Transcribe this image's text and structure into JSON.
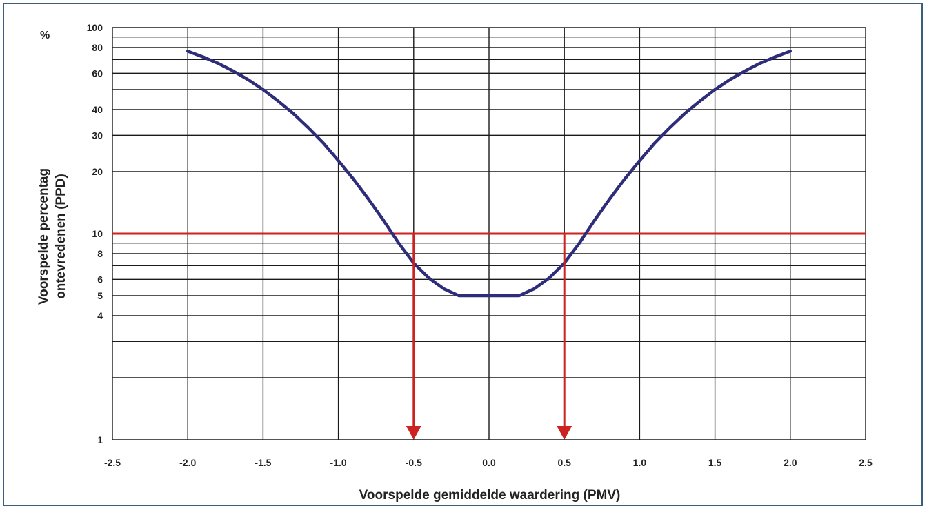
{
  "chart_data": {
    "type": "line",
    "title": "",
    "xlabel": "Voorspelde gemiddelde waardering (PMV)",
    "ylabel_line1": "Voorspelde percentag",
    "ylabel_line2": "ontevredenen (PPD)",
    "yunit": "%",
    "xlim": [
      -2.5,
      2.5
    ],
    "ylim": [
      1,
      100
    ],
    "yscale": "log",
    "grid": true,
    "x_ticks": [
      "-2.5",
      "-2.0",
      "-1.5",
      "-1.0",
      "-0.5",
      "0.0",
      "0.5",
      "1.0",
      "1.5",
      "2.0",
      "2.5"
    ],
    "y_ticks": [
      {
        "value": 1,
        "label": "1"
      },
      {
        "value": 4,
        "label": "4"
      },
      {
        "value": 5,
        "label": "5"
      },
      {
        "value": 6,
        "label": "6"
      },
      {
        "value": 8,
        "label": "8"
      },
      {
        "value": 10,
        "label": "10"
      },
      {
        "value": 20,
        "label": "20"
      },
      {
        "value": 30,
        "label": "30"
      },
      {
        "value": 40,
        "label": "40"
      },
      {
        "value": 60,
        "label": "60"
      },
      {
        "value": 80,
        "label": "80"
      },
      {
        "value": 100,
        "label": "100"
      }
    ],
    "y_grid_values": [
      1,
      2,
      3,
      4,
      5,
      6,
      7,
      8,
      9,
      10,
      20,
      30,
      40,
      50,
      60,
      70,
      80,
      90,
      100
    ],
    "series": [
      {
        "x": [
          -2.0,
          -1.9,
          -1.8,
          -1.7,
          -1.6,
          -1.5,
          -1.4,
          -1.3,
          -1.2,
          -1.1,
          -1.0,
          -0.9,
          -0.8,
          -0.7,
          -0.6,
          -0.5,
          -0.4,
          -0.3,
          -0.2,
          -0.1,
          0.0,
          0.1,
          0.2,
          0.3,
          0.4,
          0.5,
          0.6,
          0.7,
          0.8,
          0.9,
          1.0,
          1.1,
          1.2,
          1.3,
          1.4,
          1.5,
          1.6,
          1.7,
          1.8,
          1.9,
          2.0
        ],
        "y": [
          76.8,
          72.1,
          67.1,
          61.6,
          55.9,
          50.0,
          44.0,
          38.3,
          32.7,
          27.5,
          22.6,
          18.4,
          14.7,
          11.6,
          9.0,
          7.2,
          6.1,
          5.4,
          5.0,
          5.0,
          5.0,
          5.0,
          5.0,
          5.4,
          6.1,
          7.2,
          9.0,
          11.6,
          14.7,
          18.4,
          22.6,
          27.5,
          32.7,
          38.3,
          44.0,
          50.0,
          55.9,
          61.6,
          67.1,
          72.1,
          76.8
        ],
        "color": "#2e2d7a"
      }
    ],
    "reference_line": {
      "y": 10,
      "color": "#cc2222"
    },
    "arrows": [
      {
        "x": -0.5,
        "from_y": 10,
        "to_y": 1,
        "color": "#cc2222"
      },
      {
        "x": 0.5,
        "from_y": 10,
        "to_y": 1,
        "color": "#cc2222"
      }
    ]
  }
}
